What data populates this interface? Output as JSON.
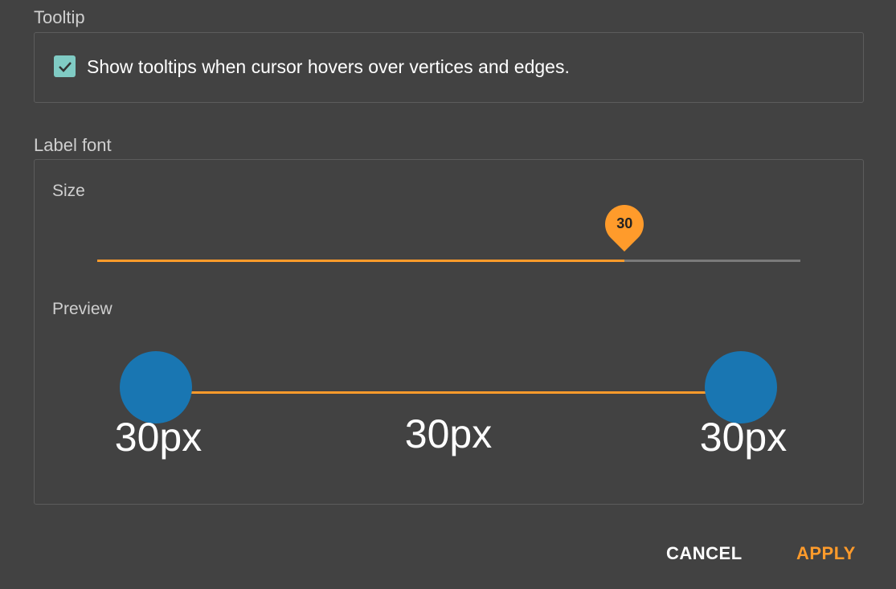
{
  "tooltip": {
    "section_label": "Tooltip",
    "checkbox_checked": true,
    "checkbox_label": "Show tooltips when cursor hovers over vertices and edges."
  },
  "label_font": {
    "section_label": "Label font",
    "size_label": "Size",
    "size_value": "30",
    "slider_fraction": 0.75,
    "preview_label": "Preview",
    "preview_texts": [
      "30px",
      "30px",
      "30px"
    ]
  },
  "actions": {
    "cancel": "CANCEL",
    "apply": "APPLY"
  },
  "colors": {
    "accent": "#ff9b2b",
    "vertex": "#1976b2",
    "checkbox": "#80cbc4",
    "background": "#424242"
  }
}
